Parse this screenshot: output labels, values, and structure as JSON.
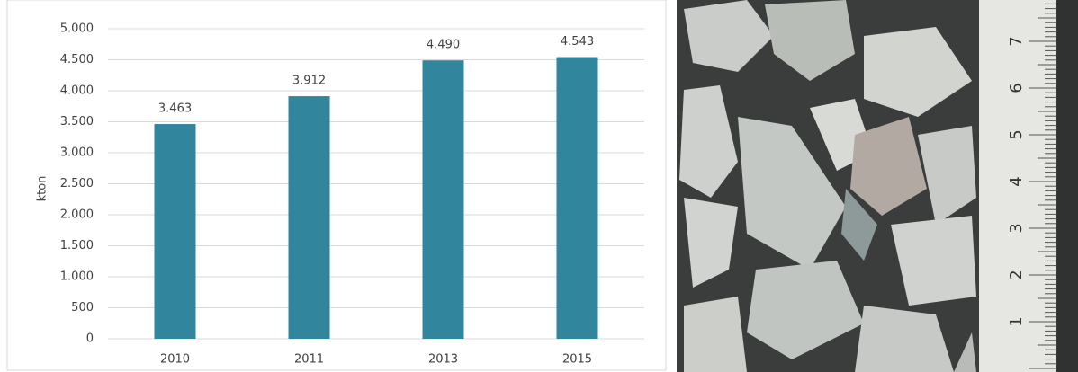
{
  "chart_data": {
    "type": "bar",
    "y_label": "kton",
    "categories": [
      "2010",
      "2011",
      "2013",
      "2015"
    ],
    "values": [
      3463,
      3912,
      4490,
      4543
    ],
    "value_labels": [
      "3.463",
      "3.912",
      "4.490",
      "4.543"
    ],
    "color": "#31859c",
    "ylim": [
      0,
      5000
    ],
    "yticks": [
      0,
      500,
      {
        "value": 1000,
        "label": "1.000"
      },
      {
        "value": 1500,
        "label": "1.500"
      },
      {
        "value": 2000,
        "label": "2.000"
      },
      {
        "value": 2500,
        "label": "2.500"
      },
      {
        "value": 3000,
        "label": "3.000"
      },
      {
        "value": 3500,
        "label": "3.500"
      },
      {
        "value": 4000,
        "label": "4.000"
      },
      {
        "value": 4500,
        "label": "4.500"
      },
      {
        "value": 5000,
        "label": "5.000"
      }
    ],
    "grid": true
  },
  "photo": {
    "ruler_labels": [
      "1",
      "2",
      "3",
      "4",
      "5",
      "6",
      "7"
    ]
  }
}
